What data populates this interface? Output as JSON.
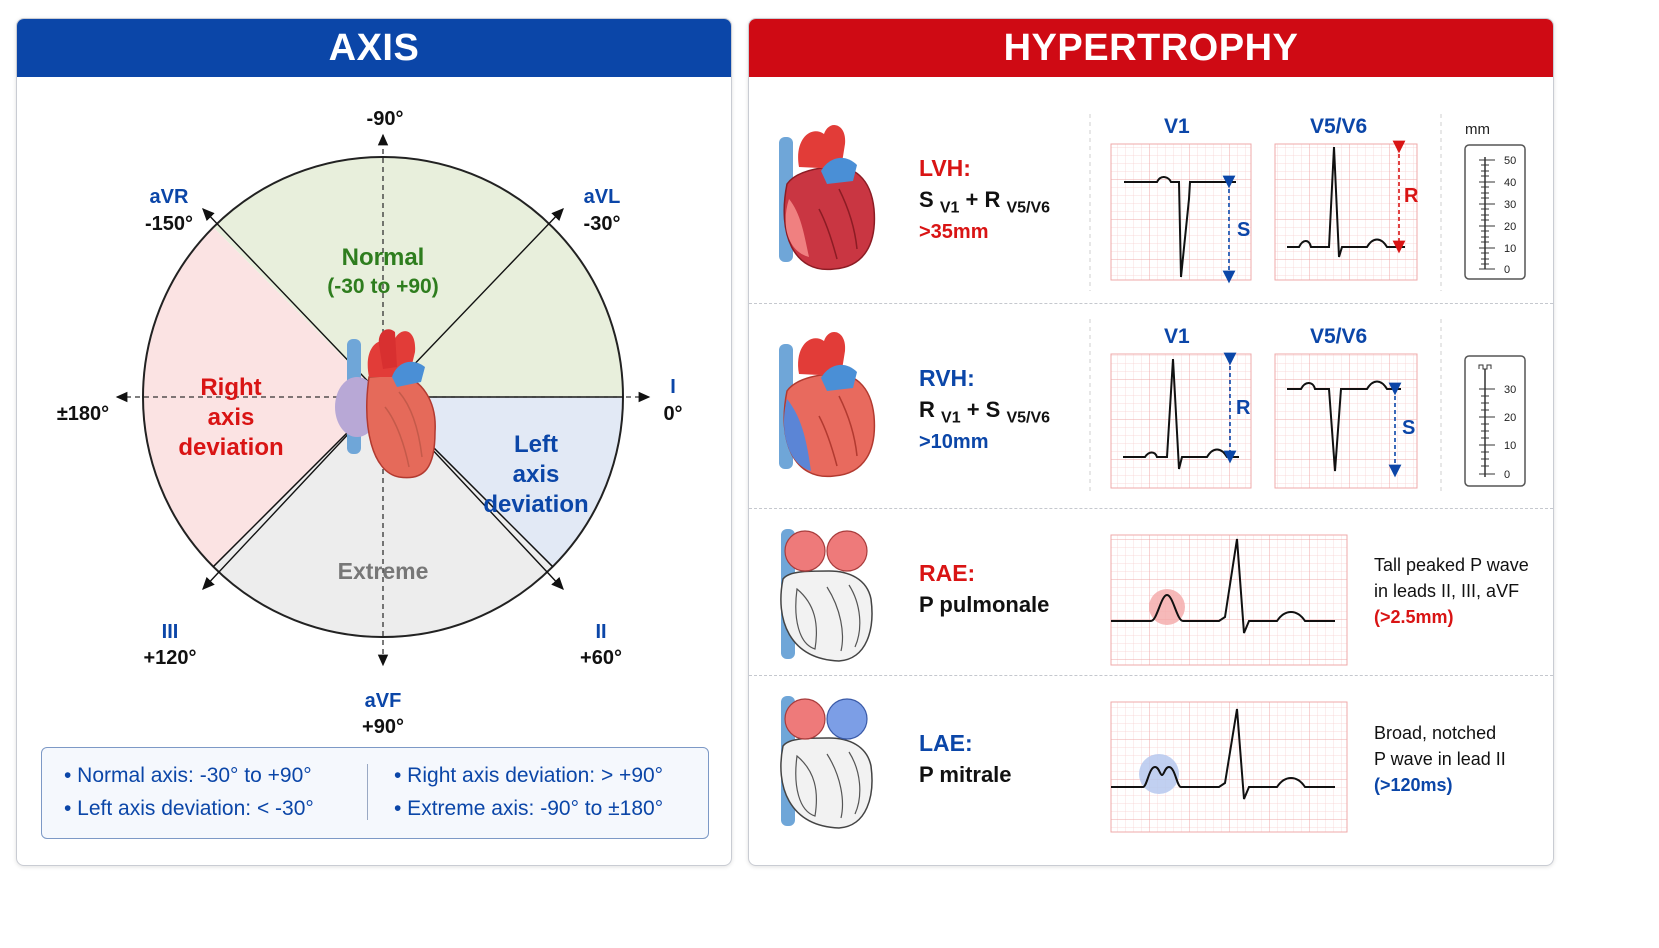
{
  "colors": {
    "blue": "#0b46a8",
    "red": "#d91414",
    "green": "#2e7d1e",
    "gray": "#777777",
    "normal_fill": "#e8efdc",
    "right_fill": "#fbe3e3",
    "left_fill": "#e2e9f5",
    "extreme_fill": "#ededed",
    "ecg_grid": "#f4bcbc"
  },
  "axis": {
    "title": "AXIS",
    "angles": {
      "top": "-90°",
      "avr_name": "aVR",
      "avr_deg": "-150°",
      "avl_name": "aVL",
      "avl_deg": "-30°",
      "left_deg": "±180°",
      "i_name": "I",
      "i_deg": "0°",
      "iii_name": "III",
      "iii_deg": "+120°",
      "ii_name": "II",
      "ii_deg": "+60°",
      "avf_name": "aVF",
      "avf_deg": "+90°"
    },
    "regions": {
      "normal": "Normal",
      "normal_range": "(-30 to +90)",
      "right_l1": "Right",
      "right_l2": "axis",
      "right_l3": "deviation",
      "left_l1": "Left",
      "left_l2": "axis",
      "left_l3": "deviation",
      "extreme": "Extreme"
    },
    "legend": [
      "• Normal axis: -30° to +90°",
      "• Left axis deviation: < -30°",
      "• Right axis deviation: > +90°",
      "• Extreme axis: -90° to ±180°"
    ]
  },
  "hypertrophy": {
    "title": "HYPERTROPHY",
    "lead_v1": "V1",
    "lead_v5v6": "V5/V6",
    "scale_unit": "mm",
    "lvh": {
      "title": "LVH:",
      "f_a": "S",
      "f_a_sub": "V1",
      "f_op": " + ",
      "f_b": "R",
      "f_b_sub": "V5/V6",
      "threshold": ">35mm",
      "s_label": "S",
      "r_label": "R",
      "ticks": [
        "50",
        "40",
        "30",
        "20",
        "10",
        "0"
      ]
    },
    "rvh": {
      "title": "RVH:",
      "f_a": "R",
      "f_a_sub": "V1",
      "f_op": " + ",
      "f_b": "S",
      "f_b_sub": "V5/V6",
      "threshold": ">10mm",
      "r_label": "R",
      "s_label": "S",
      "ticks": [
        "30",
        "20",
        "10",
        "0"
      ]
    },
    "rae": {
      "title": "RAE:",
      "subtitle": "P pulmonale",
      "note1": "Tall peaked P wave",
      "note2": "in leads II, III, aVF",
      "note3": "(>2.5mm)"
    },
    "lae": {
      "title": "LAE:",
      "subtitle": "P mitrale",
      "note1": "Broad, notched",
      "note2": "P wave in lead II",
      "note3": "(>120ms)"
    }
  }
}
